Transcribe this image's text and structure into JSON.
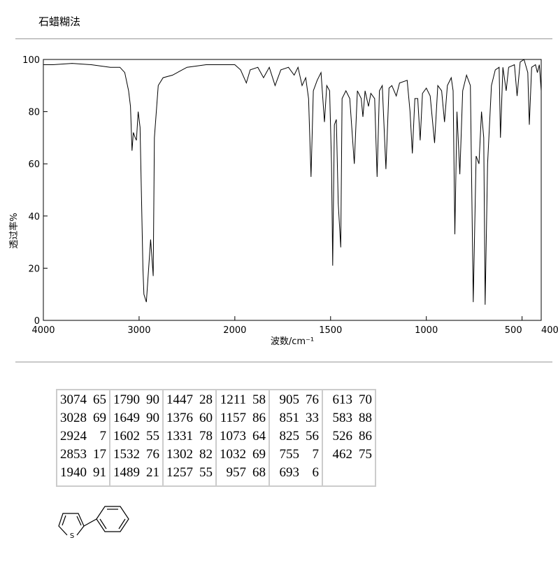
{
  "header": {
    "title": "石蜡糊法"
  },
  "chart_data": {
    "type": "line",
    "x_label": "波数/cm⁻¹",
    "y_label": "透过率%",
    "color": "#000000",
    "xlim": [
      4000,
      400
    ],
    "xticks": [
      4000,
      3000,
      2000,
      1500,
      1000,
      500,
      400
    ],
    "ylim": [
      0,
      100
    ],
    "yticks": [
      0,
      20,
      40,
      60,
      80,
      100
    ],
    "x": [
      4000,
      3900,
      3700,
      3500,
      3300,
      3200,
      3150,
      3110,
      3090,
      3074,
      3060,
      3040,
      3028,
      3010,
      2990,
      2960,
      2950,
      2924,
      2900,
      2880,
      2853,
      2840,
      2800,
      2750,
      2650,
      2500,
      2300,
      2100,
      2000,
      1970,
      1940,
      1920,
      1880,
      1850,
      1820,
      1790,
      1760,
      1720,
      1690,
      1670,
      1649,
      1630,
      1615,
      1602,
      1590,
      1570,
      1550,
      1532,
      1520,
      1505,
      1495,
      1489,
      1480,
      1470,
      1460,
      1447,
      1440,
      1420,
      1400,
      1376,
      1360,
      1340,
      1331,
      1320,
      1302,
      1290,
      1270,
      1257,
      1245,
      1230,
      1211,
      1195,
      1180,
      1157,
      1140,
      1100,
      1085,
      1073,
      1060,
      1045,
      1032,
      1020,
      1000,
      980,
      957,
      940,
      920,
      905,
      890,
      870,
      860,
      851,
      840,
      825,
      810,
      790,
      770,
      755,
      740,
      725,
      712,
      700,
      693,
      680,
      660,
      640,
      620,
      613,
      600,
      583,
      570,
      540,
      526,
      510,
      490,
      470,
      462,
      450,
      430,
      420,
      410,
      400
    ],
    "values": [
      98,
      98,
      98.5,
      98,
      97,
      97,
      95,
      88,
      82,
      65,
      72,
      70,
      69,
      80,
      74,
      20,
      10,
      7,
      20,
      31,
      17,
      70,
      90,
      93,
      94,
      97,
      98,
      98,
      98,
      96,
      91,
      96,
      97,
      93,
      97,
      90,
      96,
      97,
      94,
      97,
      90,
      93,
      85,
      55,
      88,
      92,
      95,
      76,
      90,
      88,
      60,
      21,
      75,
      77,
      45,
      28,
      85,
      88,
      85,
      60,
      88,
      85,
      78,
      88,
      82,
      87,
      85,
      55,
      88,
      90,
      58,
      89,
      90,
      86,
      91,
      92,
      80,
      64,
      85,
      85,
      69,
      87,
      89,
      86,
      68,
      90,
      88,
      76,
      90,
      93,
      88,
      33,
      80,
      56,
      88,
      94,
      90,
      7,
      63,
      60,
      80,
      70,
      6,
      60,
      90,
      96,
      97,
      70,
      97,
      88,
      97,
      98,
      86,
      99,
      100,
      95,
      75,
      97,
      98,
      95,
      98,
      88
    ]
  },
  "table": {
    "columns": [
      [
        [
          3074,
          65
        ],
        [
          3028,
          69
        ],
        [
          2924,
          7
        ],
        [
          2853,
          17
        ],
        [
          1940,
          91
        ]
      ],
      [
        [
          1790,
          90
        ],
        [
          1649,
          90
        ],
        [
          1602,
          55
        ],
        [
          1532,
          76
        ],
        [
          1489,
          21
        ]
      ],
      [
        [
          1447,
          28
        ],
        [
          1376,
          60
        ],
        [
          1331,
          78
        ],
        [
          1302,
          82
        ],
        [
          1257,
          55
        ]
      ],
      [
        [
          1211,
          58
        ],
        [
          1157,
          86
        ],
        [
          1073,
          64
        ],
        [
          1032,
          69
        ],
        [
          957,
          68
        ]
      ],
      [
        [
          905,
          76
        ],
        [
          851,
          33
        ],
        [
          825,
          56
        ],
        [
          755,
          7
        ],
        [
          693,
          6
        ]
      ],
      [
        [
          613,
          70
        ],
        [
          583,
          88
        ],
        [
          526,
          86
        ],
        [
          462,
          75
        ]
      ]
    ]
  },
  "structure": {
    "atom_label": "S"
  }
}
